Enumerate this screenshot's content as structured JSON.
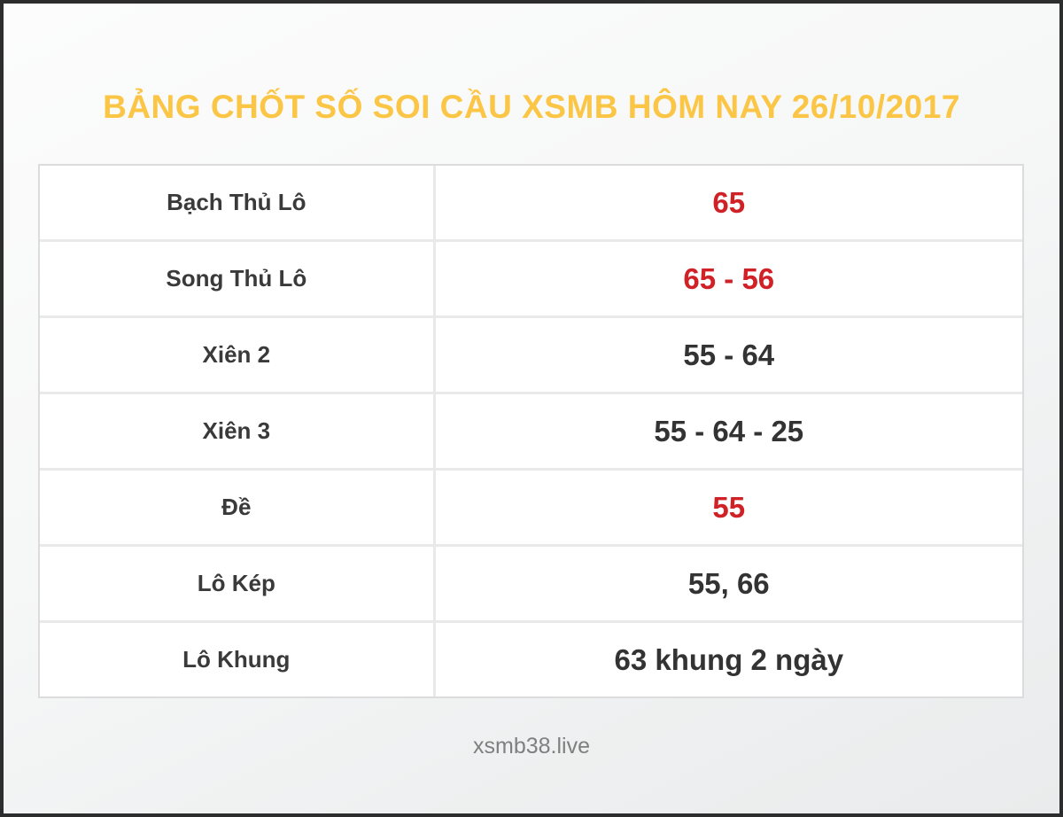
{
  "header": {
    "title": "BẢNG CHỐT SỐ SOI CẦU XSMB HÔM NAY 26/10/2017"
  },
  "table": {
    "rows": [
      {
        "label": "Bạch Thủ Lô",
        "value": "65",
        "highlight": true
      },
      {
        "label": "Song Thủ Lô",
        "value": "65 - 56",
        "highlight": true
      },
      {
        "label": "Xiên 2",
        "value": "55 - 64",
        "highlight": false
      },
      {
        "label": "Xiên 3",
        "value": "55 - 64 - 25",
        "highlight": false
      },
      {
        "label": "Đề",
        "value": "55",
        "highlight": true
      },
      {
        "label": "Lô Kép",
        "value": "55, 66",
        "highlight": false
      },
      {
        "label": "Lô Khung",
        "value": "63 khung 2 ngày",
        "highlight": false
      }
    ]
  },
  "footer": {
    "text": "xsmb38.live"
  },
  "colors": {
    "title_gold": "#fbc545",
    "highlight_red": "#d02127",
    "value_dark": "#333333",
    "label_dark": "#3a3a3a",
    "frame_border": "#2d2d2d",
    "cell_border": "#e9e9e9",
    "table_background": "#ffffff"
  }
}
